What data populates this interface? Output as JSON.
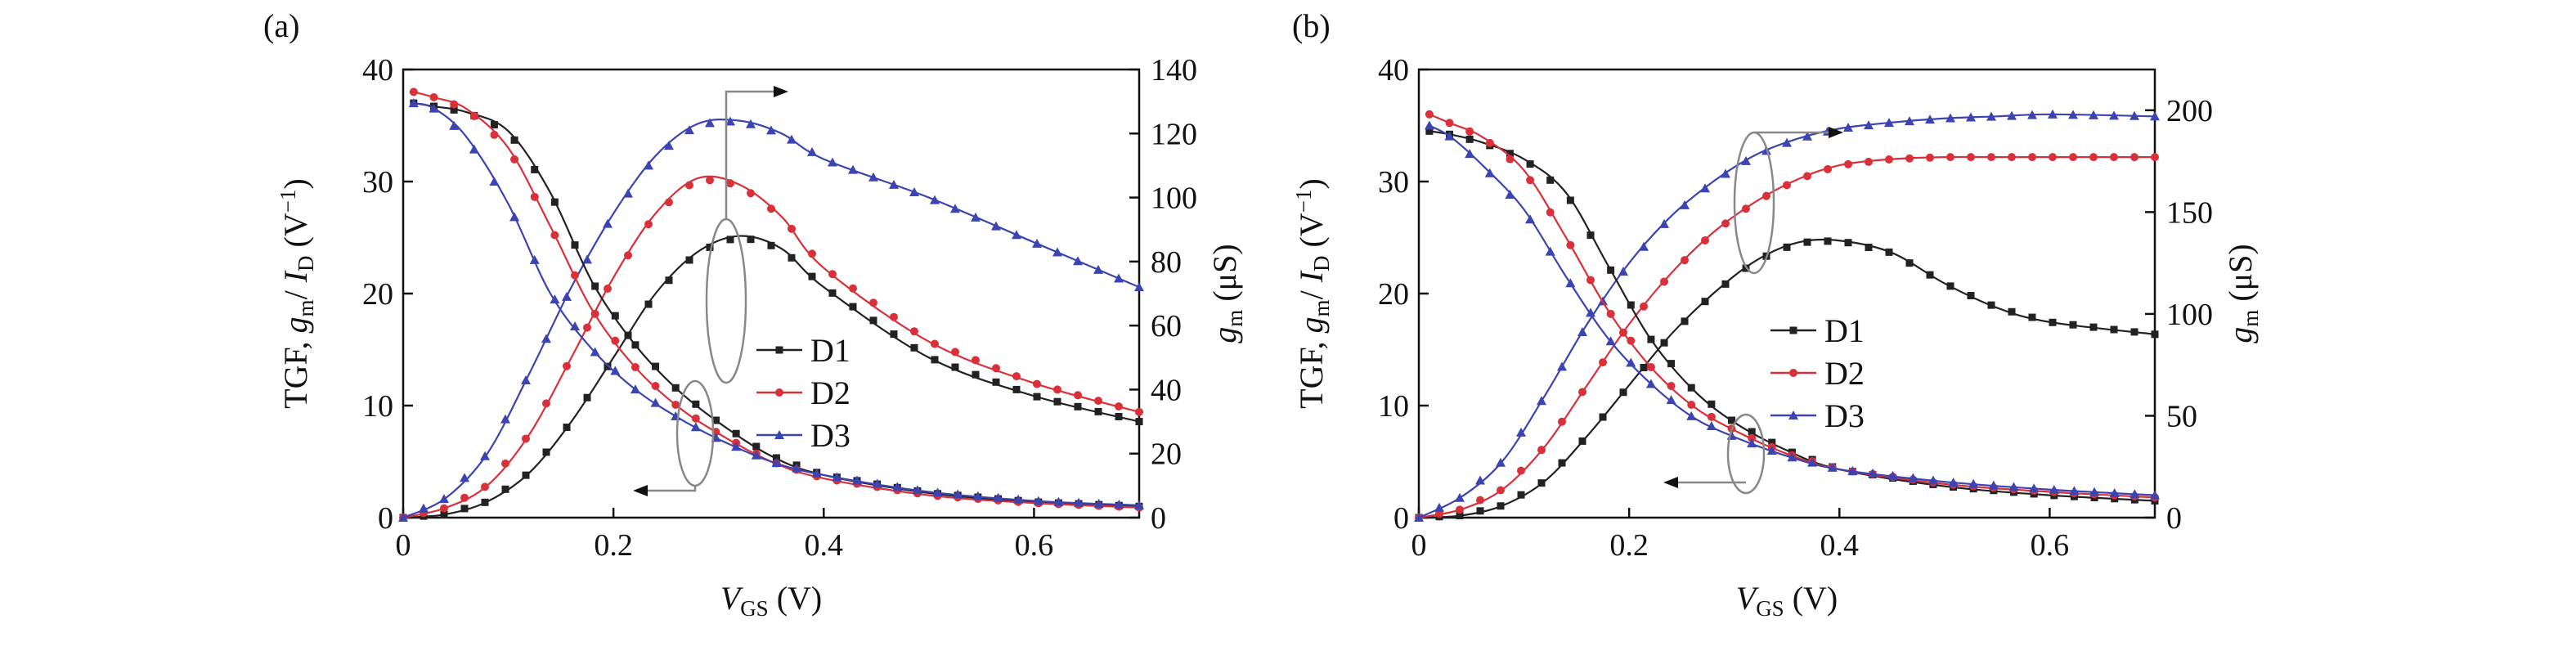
{
  "chart_data": [
    {
      "type": "line",
      "panel_label": "(a)",
      "xlabel_main": "V",
      "xlabel_sub": "GS",
      "xlabel_unit": " (V)",
      "ylabel_left": {
        "a": "TGF, ",
        "b": "g",
        "b_sub": "m",
        "c": "/ ",
        "d": "I",
        "d_sub": "D",
        "e": " (V",
        "e_sup": "−1",
        "f": ")"
      },
      "ylabel_right": {
        "main": "g",
        "sub": "m",
        "unit": " (μS)"
      },
      "xlim": [
        0,
        0.7
      ],
      "xticks": [
        "0",
        "0.2",
        "0.4",
        "0.6"
      ],
      "xtick_values": [
        0,
        0.2,
        0.4,
        0.6
      ],
      "ylim_left": [
        0,
        40
      ],
      "yticks_left": [
        "0",
        "10",
        "20",
        "30",
        "40"
      ],
      "yticks_left_values": [
        0,
        10,
        20,
        30,
        40
      ],
      "ylim_right": [
        0,
        140
      ],
      "yticks_right": [
        "0",
        "20",
        "40",
        "60",
        "80",
        "100",
        "120",
        "140"
      ],
      "yticks_right_values": [
        0,
        20,
        40,
        60,
        80,
        100,
        120,
        140
      ],
      "legend": {
        "position": "center-right",
        "entries": [
          "D1",
          "D2",
          "D3"
        ]
      },
      "series": [
        {
          "name": "D1",
          "axis": "right",
          "marker": "square",
          "color": "#222222",
          "x": [
            0,
            0.04,
            0.08,
            0.12,
            0.16,
            0.2,
            0.24,
            0.28,
            0.32,
            0.36,
            0.4,
            0.5,
            0.6,
            0.7
          ],
          "y": [
            0,
            1,
            5,
            14,
            30,
            50,
            70,
            83,
            88,
            84,
            72,
            50,
            38,
            30
          ]
        },
        {
          "name": "D2",
          "axis": "right",
          "marker": "circle",
          "color": "#d9303a",
          "x": [
            0,
            0.04,
            0.08,
            0.12,
            0.16,
            0.2,
            0.24,
            0.28,
            0.32,
            0.36,
            0.4,
            0.5,
            0.6,
            0.7
          ],
          "y": [
            0,
            3,
            10,
            26,
            50,
            75,
            95,
            106,
            104,
            94,
            78,
            55,
            42,
            33
          ]
        },
        {
          "name": "D3",
          "axis": "right",
          "marker": "triangle",
          "color": "#3b44b0",
          "x": [
            0,
            0.04,
            0.08,
            0.12,
            0.16,
            0.2,
            0.24,
            0.28,
            0.32,
            0.36,
            0.4,
            0.5,
            0.6,
            0.7
          ],
          "y": [
            0,
            6,
            20,
            45,
            72,
            95,
            113,
            123,
            124,
            120,
            112,
            100,
            86,
            72
          ]
        },
        {
          "name": "D1",
          "axis": "left",
          "marker": "square",
          "color": "#222222",
          "x": [
            0.01,
            0.03,
            0.06,
            0.1,
            0.14,
            0.18,
            0.22,
            0.26,
            0.3,
            0.35,
            0.4,
            0.5,
            0.6,
            0.7
          ],
          "y": [
            37,
            36.7,
            36.2,
            34.5,
            29,
            21,
            15.5,
            11.5,
            8.5,
            5.5,
            3.8,
            2.2,
            1.4,
            1
          ]
        },
        {
          "name": "D2",
          "axis": "left",
          "marker": "circle",
          "color": "#d9303a",
          "x": [
            0.01,
            0.03,
            0.06,
            0.1,
            0.14,
            0.18,
            0.22,
            0.26,
            0.3,
            0.35,
            0.4,
            0.5,
            0.6,
            0.7
          ],
          "y": [
            38,
            37.5,
            36.5,
            33,
            26,
            18.5,
            13.5,
            10,
            7.5,
            5,
            3.5,
            2,
            1.3,
            0.9
          ]
        },
        {
          "name": "D3",
          "axis": "left",
          "marker": "triangle",
          "color": "#3b44b0",
          "x": [
            0.01,
            0.03,
            0.06,
            0.1,
            0.14,
            0.18,
            0.22,
            0.26,
            0.3,
            0.35,
            0.4,
            0.5,
            0.6,
            0.7
          ],
          "y": [
            37,
            36.5,
            34,
            28,
            20,
            15,
            11.5,
            9,
            7,
            5,
            3.8,
            2.3,
            1.5,
            1.1
          ]
        }
      ]
    },
    {
      "type": "line",
      "panel_label": "(b)",
      "xlabel_main": "V",
      "xlabel_sub": "GS",
      "xlabel_unit": " (V)",
      "ylabel_left": {
        "a": "TGF, ",
        "b": "g",
        "b_sub": "m",
        "c": "/ ",
        "d": "I",
        "d_sub": "D",
        "e": " (V",
        "e_sup": "−1",
        "f": ")"
      },
      "ylabel_right": {
        "main": "g",
        "sub": "m",
        "unit": " (μS)"
      },
      "xlim": [
        0,
        0.7
      ],
      "xticks": [
        "0",
        "0.2",
        "0.4",
        "0.6"
      ],
      "xtick_values": [
        0,
        0.2,
        0.4,
        0.6
      ],
      "ylim_left": [
        0,
        40
      ],
      "yticks_left": [
        "0",
        "10",
        "20",
        "30",
        "40"
      ],
      "yticks_left_values": [
        0,
        10,
        20,
        30,
        40
      ],
      "ylim_right": [
        0,
        220
      ],
      "yticks_right": [
        "0",
        "50",
        "100",
        "150",
        "200"
      ],
      "yticks_right_values": [
        0,
        50,
        100,
        150,
        200
      ],
      "legend": {
        "position": "center",
        "entries": [
          "D1",
          "D2",
          "D3"
        ]
      },
      "series": [
        {
          "name": "D1",
          "axis": "right",
          "marker": "square",
          "color": "#222222",
          "x": [
            0,
            0.04,
            0.08,
            0.12,
            0.16,
            0.2,
            0.24,
            0.28,
            0.32,
            0.36,
            0.4,
            0.45,
            0.5,
            0.55,
            0.6,
            0.7
          ],
          "y": [
            0,
            1,
            6,
            18,
            40,
            65,
            90,
            110,
            126,
            135,
            136,
            130,
            115,
            103,
            96,
            90
          ]
        },
        {
          "name": "D2",
          "axis": "right",
          "marker": "circle",
          "color": "#d9303a",
          "x": [
            0,
            0.04,
            0.08,
            0.12,
            0.16,
            0.2,
            0.24,
            0.28,
            0.32,
            0.36,
            0.4,
            0.45,
            0.5,
            0.55,
            0.6,
            0.7
          ],
          "y": [
            0,
            4,
            14,
            35,
            65,
            95,
            120,
            140,
            155,
            166,
            173,
            176,
            177,
            177,
            177,
            177
          ]
        },
        {
          "name": "D3",
          "axis": "right",
          "marker": "triangle",
          "color": "#3b44b0",
          "x": [
            0,
            0.04,
            0.08,
            0.12,
            0.16,
            0.2,
            0.24,
            0.28,
            0.32,
            0.36,
            0.4,
            0.45,
            0.5,
            0.55,
            0.6,
            0.7
          ],
          "y": [
            0,
            10,
            28,
            60,
            95,
            125,
            148,
            165,
            178,
            186,
            191,
            194,
            196,
            197,
            198,
            197
          ]
        },
        {
          "name": "D1",
          "axis": "left",
          "marker": "square",
          "color": "#222222",
          "x": [
            0.01,
            0.03,
            0.06,
            0.1,
            0.14,
            0.18,
            0.22,
            0.26,
            0.3,
            0.35,
            0.4,
            0.5,
            0.6,
            0.7
          ],
          "y": [
            34.5,
            34.2,
            33.5,
            32,
            29,
            22.5,
            16,
            11.5,
            8.5,
            6,
            4.3,
            2.8,
            2,
            1.5
          ]
        },
        {
          "name": "D2",
          "axis": "left",
          "marker": "circle",
          "color": "#d9303a",
          "x": [
            0.01,
            0.03,
            0.06,
            0.1,
            0.14,
            0.18,
            0.22,
            0.26,
            0.3,
            0.35,
            0.4,
            0.5,
            0.6,
            0.7
          ],
          "y": [
            36,
            35.2,
            34,
            31,
            25,
            18.5,
            13.5,
            10,
            7.8,
            5.7,
            4.3,
            3,
            2.3,
            1.8
          ]
        },
        {
          "name": "D3",
          "axis": "left",
          "marker": "triangle",
          "color": "#3b44b0",
          "x": [
            0.01,
            0.03,
            0.06,
            0.1,
            0.14,
            0.18,
            0.22,
            0.26,
            0.3,
            0.35,
            0.4,
            0.5,
            0.6,
            0.7
          ],
          "y": [
            35,
            34,
            31.5,
            27.5,
            21.5,
            16,
            12,
            9,
            7.2,
            5.5,
            4.3,
            3.2,
            2.5,
            2
          ]
        }
      ]
    }
  ]
}
